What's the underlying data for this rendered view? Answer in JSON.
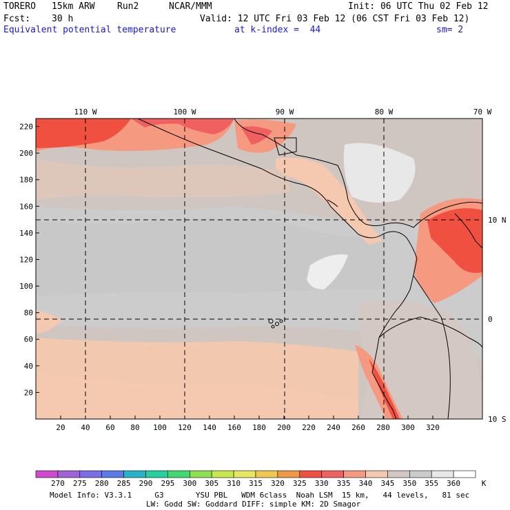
{
  "header": {
    "model": "TORERO",
    "resolution": "15km ARW",
    "run": "Run2",
    "institution": "NCAR/MMM",
    "init": "Init: 06 UTC Thu 02 Feb 12",
    "fcst_label": "Fcst:",
    "fcst_hours": "30 h",
    "valid": "Valid: 12 UTC Fri 03 Feb 12 (06 CST Fri 03 Feb 12)",
    "field": "Equivalent potential temperature",
    "level": "at k-index =  44",
    "smoothing": "sm= 2"
  },
  "map": {
    "top_lon_labels": [
      "110 W",
      "100 W",
      "90 W",
      "80 W",
      "70 W"
    ],
    "right_lat_labels": [
      "10 N",
      "0",
      "10 S"
    ],
    "left_grid_labels": [
      "220",
      "200",
      "180",
      "160",
      "140",
      "120",
      "100",
      "80",
      "60",
      "40",
      "20"
    ],
    "bottom_grid_labels": [
      "20",
      "40",
      "60",
      "80",
      "100",
      "120",
      "140",
      "160",
      "180",
      "200",
      "220",
      "240",
      "260",
      "280",
      "300",
      "320"
    ]
  },
  "colorbar": {
    "unit": "K",
    "labels": [
      "270",
      "275",
      "280",
      "285",
      "290",
      "295",
      "300",
      "305",
      "310",
      "315",
      "320",
      "325",
      "330",
      "335",
      "340",
      "345",
      "350",
      "355",
      "360"
    ],
    "colors": [
      "#d04ad0",
      "#a060d8",
      "#7a6ee6",
      "#5a7ae6",
      "#28b4c8",
      "#28d0a0",
      "#40d870",
      "#8ee050",
      "#c8e850",
      "#e8e860",
      "#f0c850",
      "#f09848",
      "#f05040",
      "#f06060",
      "#f59a80",
      "#f5c8b0",
      "#d4c8c4",
      "#cccccc",
      "#e8e8e8",
      "#ffffff"
    ]
  },
  "footer": {
    "line1": "Model Info: V3.3.1     G3       YSU PBL   WDM 6class  Noah LSM  15 km,   44 levels,   81 sec",
    "line2": "LW: Godd SW: Goddard DIFF: simple KM: 2D Smagor"
  }
}
